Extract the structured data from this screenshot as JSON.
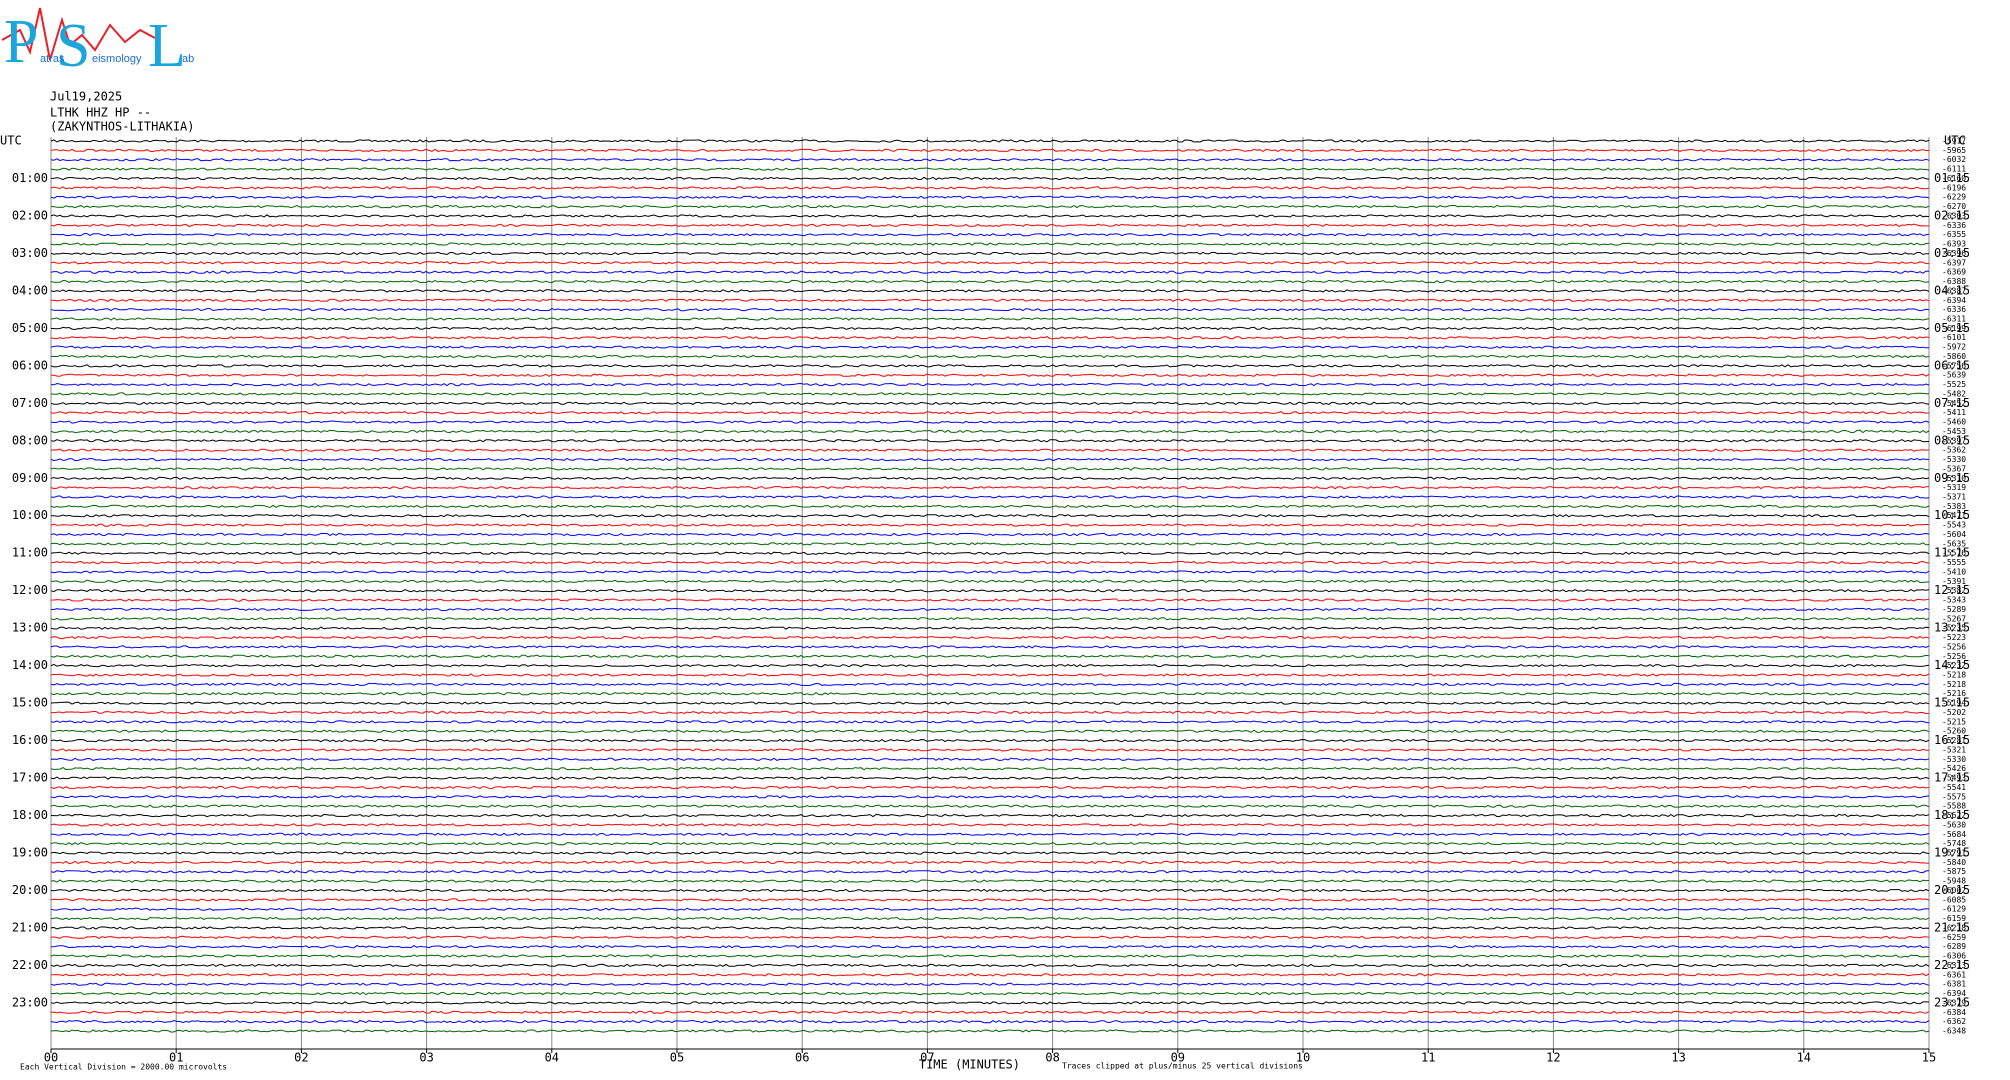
{
  "logo": {
    "p": "P",
    "s": "S",
    "l": "L",
    "small_1": "atras",
    "small_2": "eismology",
    "small_3": "ab"
  },
  "header": {
    "date": "Jul19,2025",
    "channel": "LTHK HHZ HP --",
    "station": "(ZAKYNTHOS-LITHAKIA)"
  },
  "left_axis": {
    "title": "UTC",
    "labels": [
      "01:00",
      "02:00",
      "03:00",
      "04:00",
      "05:00",
      "06:00",
      "07:00",
      "08:00",
      "09:00",
      "10:00",
      "11:00",
      "12:00",
      "13:00",
      "14:00",
      "15:00",
      "16:00",
      "17:00",
      "18:00",
      "19:00",
      "20:00",
      "21:00",
      "22:00",
      "23:00"
    ]
  },
  "right_axis": {
    "title": "UTC",
    "labels": [
      "01:15",
      "02:15",
      "03:15",
      "04:15",
      "05:15",
      "06:15",
      "07:15",
      "08:15",
      "09:15",
      "10:15",
      "11:15",
      "12:15",
      "13:15",
      "14:15",
      "15:15",
      "16:15",
      "17:15",
      "18:15",
      "19:15",
      "20:15",
      "21:15",
      "22:15",
      "23:15"
    ]
  },
  "offsets": [
    -5917,
    -5965,
    -6032,
    -6111,
    -6160,
    -6196,
    -6229,
    -6270,
    -6303,
    -6336,
    -6355,
    -6393,
    -6396,
    -6397,
    -6369,
    -6388,
    -6387,
    -6394,
    -6336,
    -6311,
    -6199,
    -6101,
    -5972,
    -5860,
    -5756,
    -5639,
    -5525,
    -5482,
    -5452,
    -5411,
    -5460,
    -5453,
    -5397,
    -5362,
    -5330,
    -5367,
    -5310,
    -5319,
    -5371,
    -5383,
    -5471,
    -5543,
    -5604,
    -5635,
    -5576,
    -5555,
    -5410,
    -5391,
    -5382,
    -5343,
    -5289,
    -5267,
    -5235,
    -5223,
    -5256,
    -5256,
    -5232,
    -5218,
    -5218,
    -5216,
    -5194,
    -5202,
    -5215,
    -5260,
    -5281,
    -5321,
    -5330,
    -5426,
    -5493,
    -5541,
    -5575,
    -5588,
    -5622,
    -5630,
    -5684,
    -5748,
    -5791,
    -5840,
    -5875,
    -5948,
    -6002,
    -6085,
    -6129,
    -6159,
    -6218,
    -6259,
    -6289,
    -6306,
    -6313,
    -6361,
    -6381,
    -6394,
    -6379,
    -6384,
    -6362,
    -6348
  ],
  "x_axis": {
    "ticks": [
      "00",
      "01",
      "02",
      "03",
      "04",
      "05",
      "06",
      "07",
      "08",
      "09",
      "10",
      "11",
      "12",
      "13",
      "14",
      "15"
    ],
    "title": "TIME (MINUTES)"
  },
  "footer": {
    "scale": "Each Vertical Division = 2000.00 microvolts",
    "clip": "Traces clipped at plus/minus 25 vertical divisions"
  }
}
